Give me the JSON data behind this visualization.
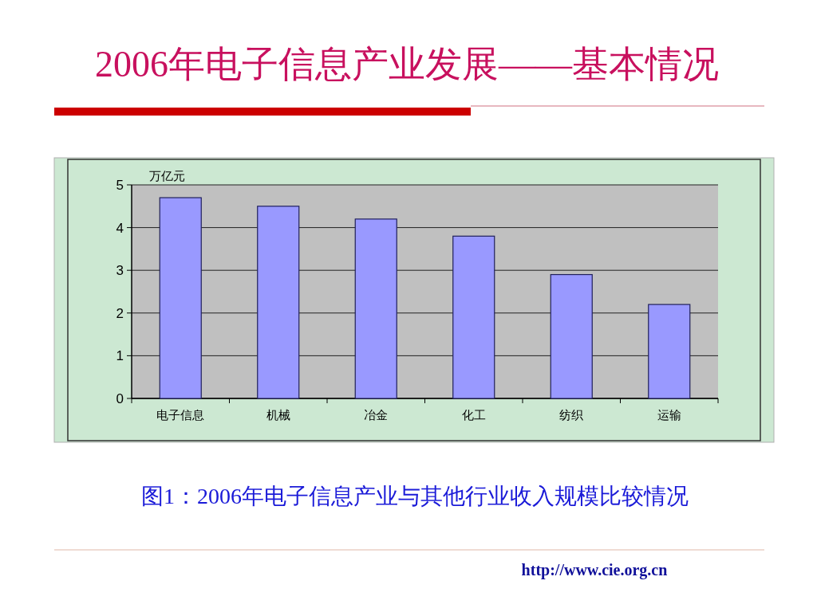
{
  "chart_data": {
    "type": "bar",
    "title": "2006年电子信息产业发展——基本情况",
    "ylabel": "万亿元",
    "categories": [
      "电子信息",
      "机械",
      "冶金",
      "化工",
      "纺织",
      "运输"
    ],
    "values": [
      4.7,
      4.5,
      4.2,
      3.8,
      2.9,
      2.2
    ],
    "color": "#9999ff",
    "ylim": [
      0,
      5
    ],
    "yticks": [
      0,
      1,
      2,
      3,
      4,
      5
    ],
    "grid": "y",
    "annotations": [
      "图1：2006年电子信息产业与其他行业收入规模比较情况",
      "http://www.cie.org.cn"
    ]
  }
}
